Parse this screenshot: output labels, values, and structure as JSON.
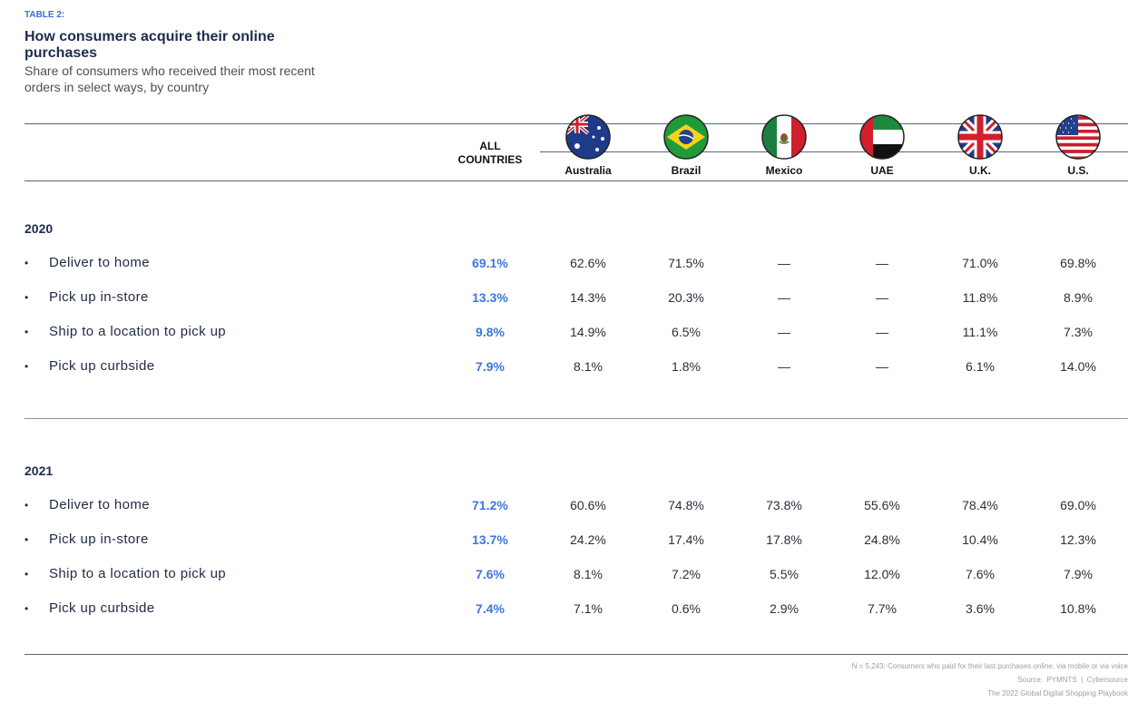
{
  "header": {
    "label": "TABLE 2:",
    "title": "How consumers acquire their online purchases",
    "subtitle": "Share of consumers who received their most recent orders in select ways, by country"
  },
  "table": {
    "columns": [
      "ALL COUNTRIES",
      "Australia",
      "Brazil",
      "Mexico",
      "UAE",
      "U.K.",
      "U.S."
    ],
    "sections": [
      {
        "year": "2020",
        "rows": [
          {
            "label": "Deliver to home",
            "cells": [
              "69.1%",
              "62.6%",
              "71.5%",
              "—",
              "—",
              "71.0%",
              "69.8%"
            ]
          },
          {
            "label": "Pick up in-store",
            "cells": [
              "13.3%",
              "14.3%",
              "20.3%",
              "—",
              "—",
              "11.8%",
              "8.9%"
            ]
          },
          {
            "label": "Ship to a location to pick up",
            "cells": [
              "9.8%",
              "14.9%",
              "6.5%",
              "—",
              "—",
              "11.1%",
              "7.3%"
            ]
          },
          {
            "label": "Pick up curbside",
            "cells": [
              "7.9%",
              "8.1%",
              "1.8%",
              "—",
              "—",
              "6.1%",
              "14.0%"
            ]
          }
        ]
      },
      {
        "year": "2021",
        "rows": [
          {
            "label": "Deliver to home",
            "cells": [
              "71.2%",
              "60.6%",
              "74.8%",
              "73.8%",
              "55.6%",
              "78.4%",
              "69.0%"
            ]
          },
          {
            "label": "Pick up in-store",
            "cells": [
              "13.7%",
              "24.2%",
              "17.4%",
              "17.8%",
              "24.8%",
              "10.4%",
              "12.3%"
            ]
          },
          {
            "label": "Ship to a location to pick up",
            "cells": [
              "7.6%",
              "8.1%",
              "7.2%",
              "5.5%",
              "12.0%",
              "7.6%",
              "7.9%"
            ]
          },
          {
            "label": "Pick up curbside",
            "cells": [
              "7.4%",
              "7.1%",
              "0.6%",
              "2.9%",
              "7.7%",
              "3.6%",
              "10.8%"
            ]
          }
        ]
      }
    ]
  },
  "footer": {
    "note": "N = 5,243: Consumers who paid for their last purchases online, via mobile or via voice",
    "source": "Source:  PYMNTS  |  Cybersource",
    "publication": "The 2022 Global Digital Shopping Playbook"
  }
}
